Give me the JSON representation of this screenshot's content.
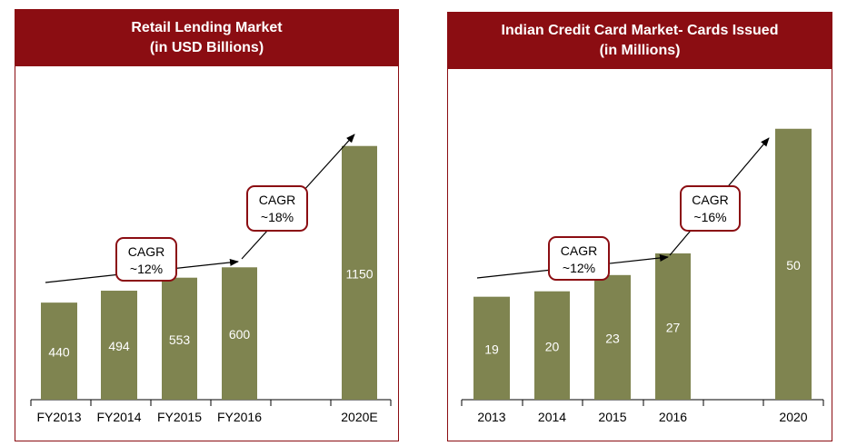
{
  "colors": {
    "header_bg": "#8b0d12",
    "bar_fill": "#7f8450",
    "bar_label": "#ffffff",
    "cagr_border": "#8b0d12",
    "arrow": "#000000"
  },
  "chart_data": [
    {
      "type": "bar",
      "title": "Retail Lending Market",
      "subtitle": "(in USD Billions)",
      "categories": [
        "FY2013",
        "FY2014",
        "FY2015",
        "FY2016",
        "",
        "2020E"
      ],
      "values": [
        440,
        494,
        553,
        600,
        null,
        1150
      ],
      "data_labels": [
        "440",
        "494",
        "553",
        "600",
        "",
        "1150"
      ],
      "ylim": [
        0,
        1400
      ],
      "grid": false,
      "annotations": [
        {
          "label": "CAGR",
          "value": "~12%",
          "from_category": "FY2013",
          "to_category": "FY2016"
        },
        {
          "label": "CAGR",
          "value": "~18%",
          "from_category": "FY2016",
          "to_category": "2020E"
        }
      ]
    },
    {
      "type": "bar",
      "title": "Indian Credit Card Market- Cards Issued",
      "subtitle": "(in Millions)",
      "categories": [
        "2013",
        "2014",
        "2015",
        "2016",
        "",
        "2020"
      ],
      "values": [
        19,
        20,
        23,
        27,
        null,
        50
      ],
      "data_labels": [
        "19",
        "20",
        "23",
        "27",
        "",
        "50"
      ],
      "ylim": [
        0,
        57
      ],
      "grid": false,
      "annotations": [
        {
          "label": "CAGR",
          "value": "~12%",
          "from_category": "2013",
          "to_category": "2016"
        },
        {
          "label": "CAGR",
          "value": "~16%",
          "from_category": "2016",
          "to_category": "2020"
        }
      ]
    }
  ]
}
